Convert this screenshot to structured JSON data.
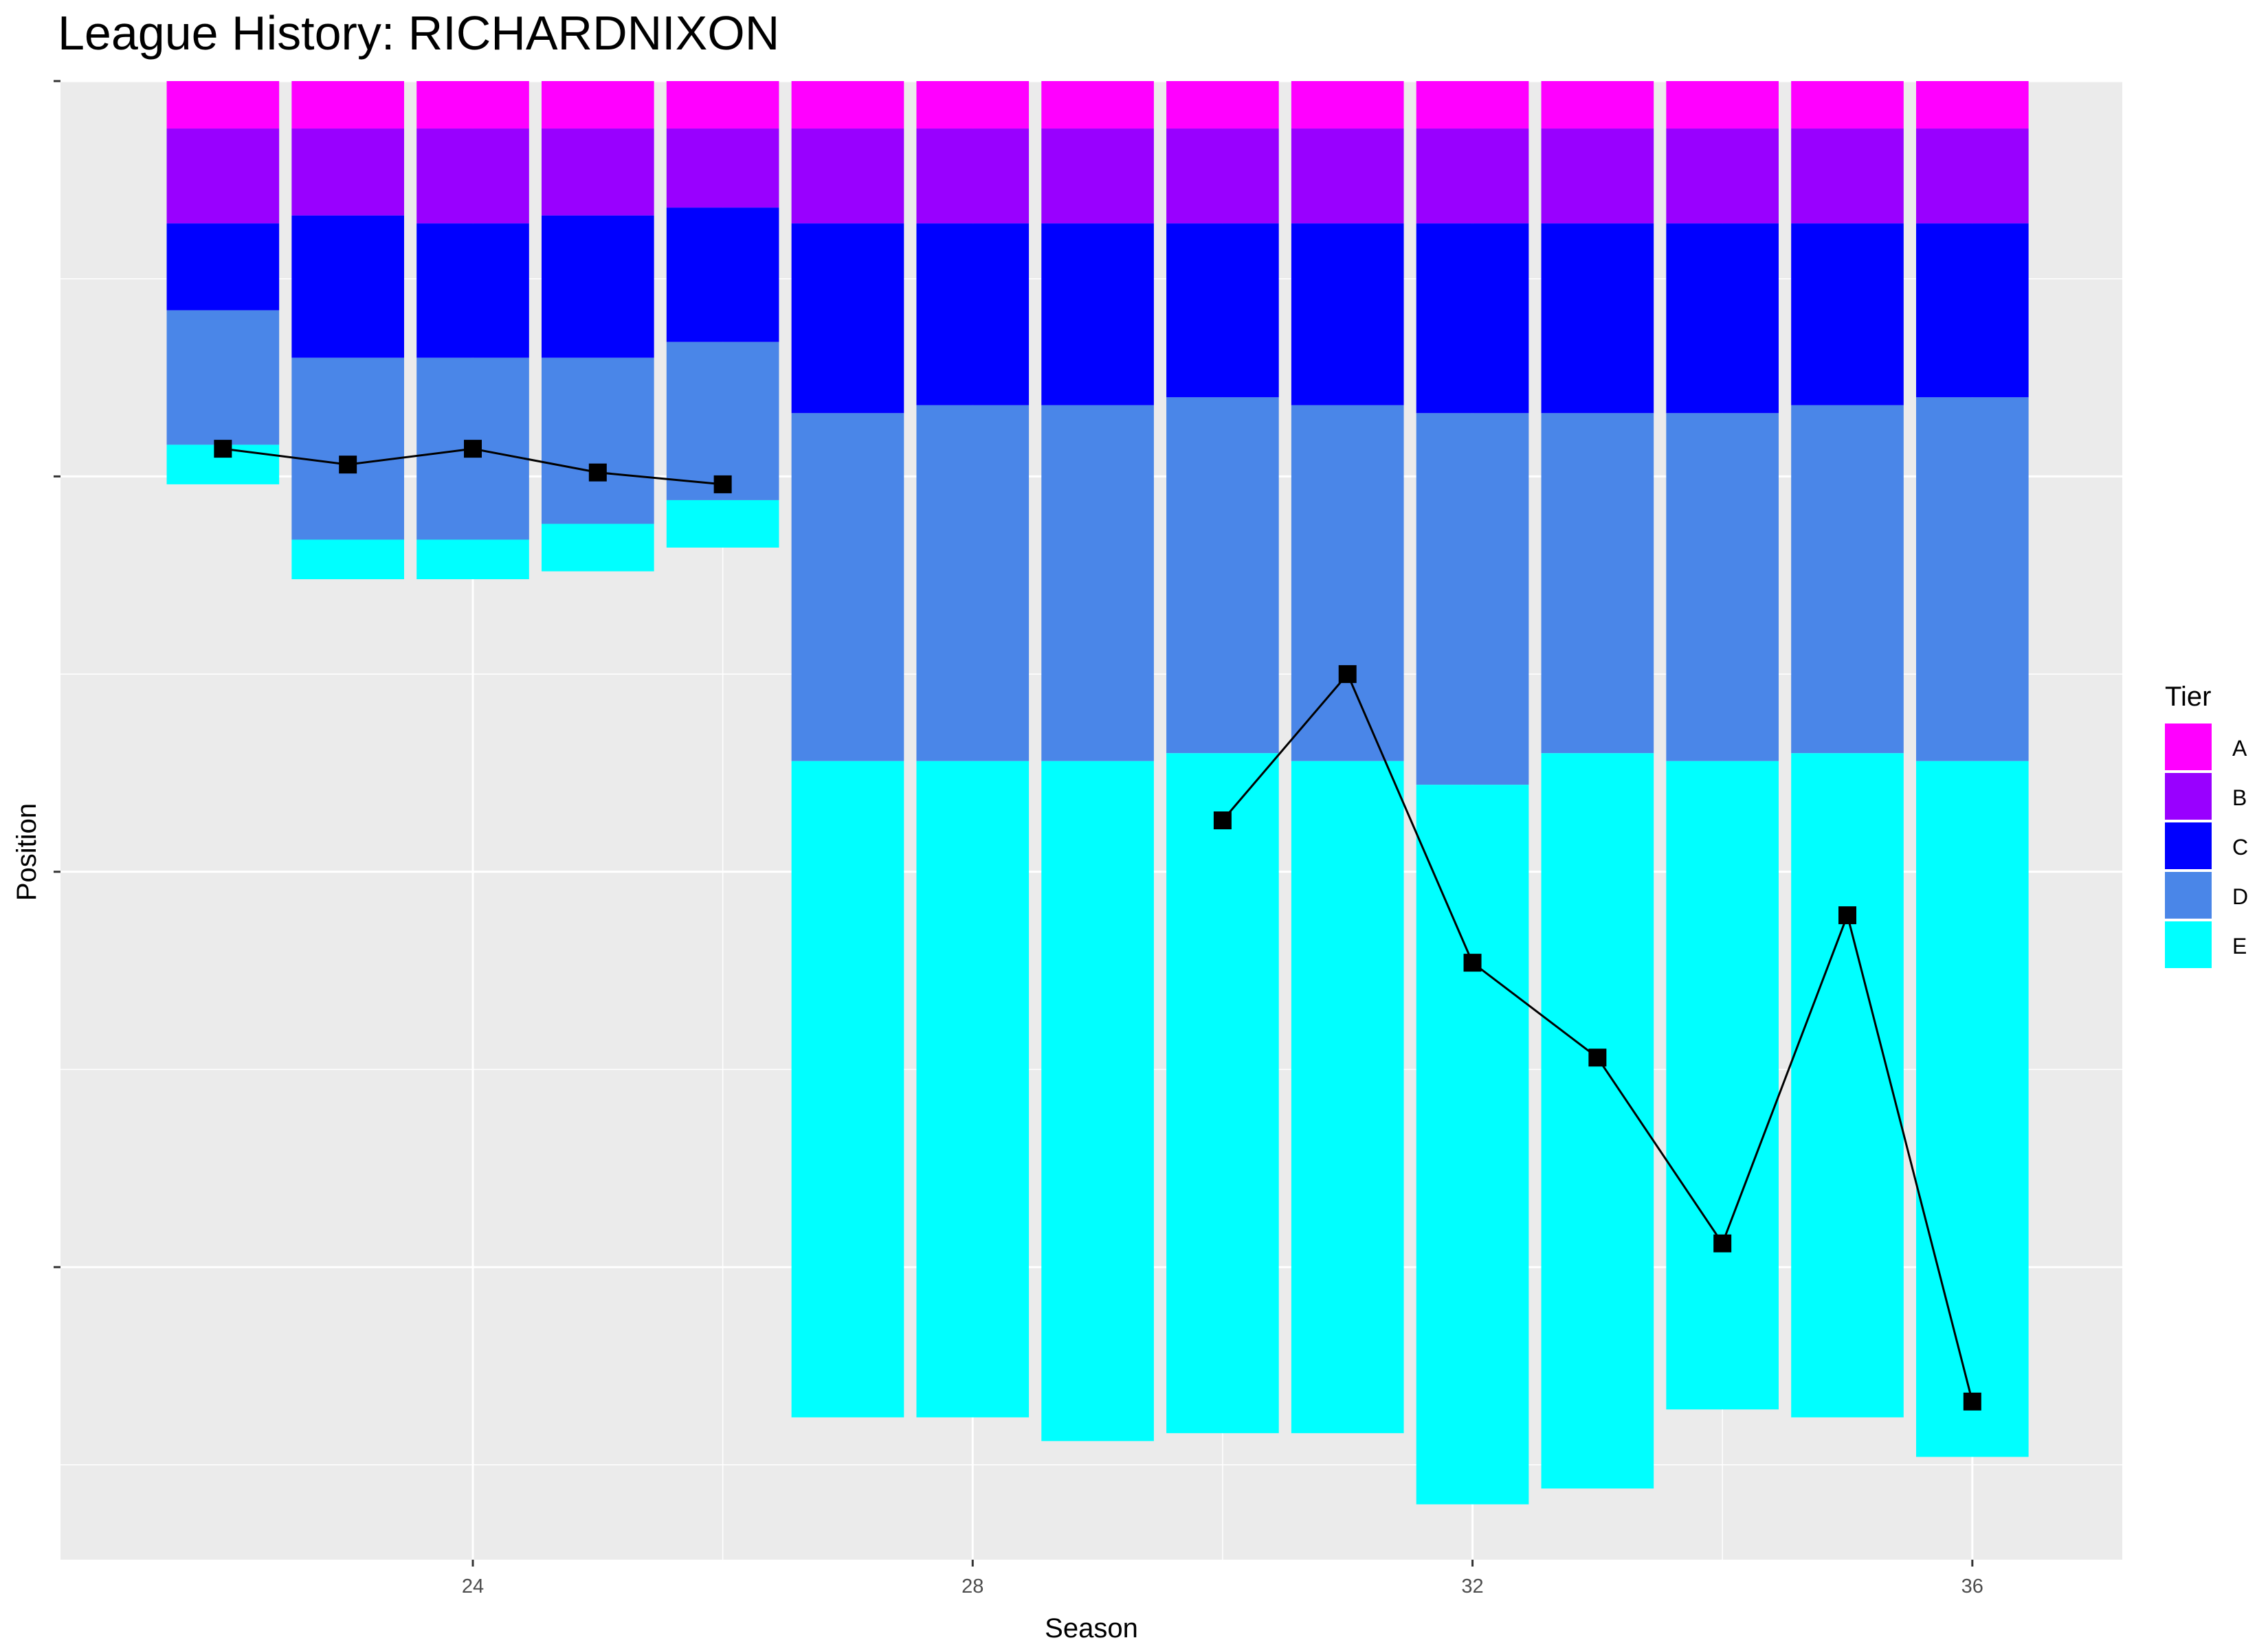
{
  "chart_data": {
    "type": "bar",
    "title": "League History: RICHARDNIXON",
    "xlabel": "Season",
    "ylabel": "Position",
    "xlim": [
      20.7,
      37.2
    ],
    "ylim": [
      -187,
      0
    ],
    "x_ticks": [
      24,
      28,
      32,
      36
    ],
    "y_ticks": [
      0,
      -50,
      -100,
      -150
    ],
    "grid": true,
    "legend": {
      "title": "Tier",
      "position": "right",
      "entries": [
        {
          "label": "A",
          "color": "#FF00FF"
        },
        {
          "label": "B",
          "color": "#9900FF"
        },
        {
          "label": "C",
          "color": "#0000FF"
        },
        {
          "label": "D",
          "color": "#4A86E8"
        },
        {
          "label": "E",
          "color": "#00FFFF"
        }
      ]
    },
    "seasons": [
      {
        "season": 22,
        "A": 6,
        "B": 12,
        "C": 11,
        "D": 17,
        "E": 5
      },
      {
        "season": 23,
        "A": 6,
        "B": 11,
        "C": 18,
        "D": 23,
        "E": 5
      },
      {
        "season": 24,
        "A": 6,
        "B": 12,
        "C": 17,
        "D": 23,
        "E": 5
      },
      {
        "season": 25,
        "A": 6,
        "B": 11,
        "C": 18,
        "D": 21,
        "E": 6
      },
      {
        "season": 26,
        "A": 6,
        "B": 10,
        "C": 17,
        "D": 20,
        "E": 6
      },
      {
        "season": 27,
        "A": 6,
        "B": 12,
        "C": 24,
        "D": 44,
        "E": 83
      },
      {
        "season": 28,
        "A": 6,
        "B": 12,
        "C": 23,
        "D": 45,
        "E": 83
      },
      {
        "season": 29,
        "A": 6,
        "B": 12,
        "C": 23,
        "D": 45,
        "E": 86
      },
      {
        "season": 30,
        "A": 6,
        "B": 12,
        "C": 22,
        "D": 45,
        "E": 86
      },
      {
        "season": 31,
        "A": 6,
        "B": 12,
        "C": 23,
        "D": 45,
        "E": 85
      },
      {
        "season": 32,
        "A": 6,
        "B": 12,
        "C": 24,
        "D": 47,
        "E": 91
      },
      {
        "season": 33,
        "A": 6,
        "B": 12,
        "C": 24,
        "D": 43,
        "E": 93
      },
      {
        "season": 34,
        "A": 6,
        "B": 12,
        "C": 24,
        "D": 44,
        "E": 82
      },
      {
        "season": 35,
        "A": 6,
        "B": 12,
        "C": 23,
        "D": 44,
        "E": 84
      },
      {
        "season": 36,
        "A": 6,
        "B": 12,
        "C": 22,
        "D": 46,
        "E": 88
      }
    ],
    "series": [
      {
        "x": [
          22,
          23,
          24,
          25,
          26
        ],
        "y": [
          -46.5,
          -48.5,
          -46.5,
          -49.5,
          -51
        ]
      },
      {
        "x": [
          30,
          31,
          32,
          33,
          34,
          35,
          36
        ],
        "y": [
          -93.5,
          -75,
          -111.5,
          -123.5,
          -147,
          -105.5,
          -167
        ]
      }
    ]
  }
}
